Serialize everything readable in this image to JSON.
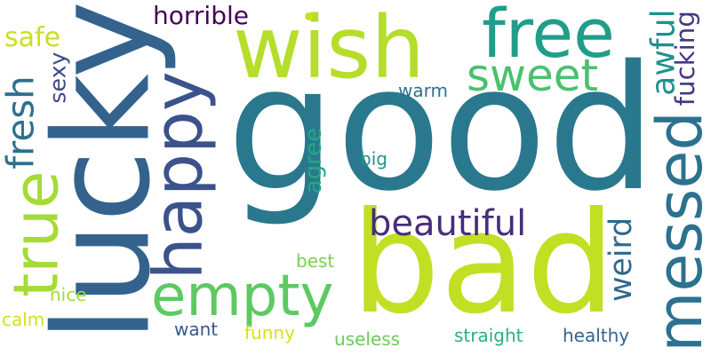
{
  "words": [
    {
      "id": "good",
      "text": "good",
      "color": "#2a788e",
      "rotate": false
    },
    {
      "id": "bad",
      "text": "bad",
      "color": "#c2df23",
      "rotate": false
    },
    {
      "id": "lucky",
      "text": "lucky",
      "color": "#33638d",
      "rotate": true
    },
    {
      "id": "wish",
      "text": "wish",
      "color": "#b5de2b",
      "rotate": false
    },
    {
      "id": "free",
      "text": "free",
      "color": "#1f9e89",
      "rotate": false
    },
    {
      "id": "messed",
      "text": "messed",
      "color": "#2c728e",
      "rotate": true
    },
    {
      "id": "happy",
      "text": "happy",
      "color": "#3b528b",
      "rotate": true
    },
    {
      "id": "empty",
      "text": "empty",
      "color": "#5ec962",
      "rotate": false
    },
    {
      "id": "sweet",
      "text": "sweet",
      "color": "#4ac16d",
      "rotate": false
    },
    {
      "id": "beautiful",
      "text": "beautiful",
      "color": "#472d7b",
      "rotate": false
    },
    {
      "id": "horrible",
      "text": "horrible",
      "color": "#440154",
      "rotate": false
    },
    {
      "id": "true",
      "text": "true",
      "color": "#a5db36",
      "rotate": true
    },
    {
      "id": "safe",
      "text": "safe",
      "color": "#c8e020",
      "rotate": false
    },
    {
      "id": "fresh",
      "text": "fresh",
      "color": "#2d708e",
      "rotate": true
    },
    {
      "id": "awful",
      "text": "awful",
      "color": "#21918c",
      "rotate": true
    },
    {
      "id": "fucking",
      "text": "fucking",
      "color": "#443983",
      "rotate": true
    },
    {
      "id": "sexy",
      "text": "sexy",
      "color": "#3e4989",
      "rotate": true
    },
    {
      "id": "warm",
      "text": "warm",
      "color": "#2c728e",
      "rotate": false
    },
    {
      "id": "agree",
      "text": "agree",
      "color": "#22a884",
      "rotate": true
    },
    {
      "id": "big",
      "text": "big",
      "color": "#1f968b",
      "rotate": false
    },
    {
      "id": "weird",
      "text": "weird",
      "color": "#31688e",
      "rotate": true
    },
    {
      "id": "best",
      "text": "best",
      "color": "#7ad151",
      "rotate": false
    },
    {
      "id": "nice",
      "text": "nice",
      "color": "#a0da39",
      "rotate": false
    },
    {
      "id": "calm",
      "text": "calm",
      "color": "#d2e21b",
      "rotate": false
    },
    {
      "id": "want",
      "text": "want",
      "color": "#375a8c",
      "rotate": false
    },
    {
      "id": "funny",
      "text": "funny",
      "color": "#d8e219",
      "rotate": false
    },
    {
      "id": "useless",
      "text": "useless",
      "color": "#6ccd5a",
      "rotate": false
    },
    {
      "id": "straight",
      "text": "straight",
      "color": "#2ab07f",
      "rotate": false
    },
    {
      "id": "healthy",
      "text": "healthy",
      "color": "#33638d",
      "rotate": false
    }
  ],
  "dot_color": "#c8e020"
}
